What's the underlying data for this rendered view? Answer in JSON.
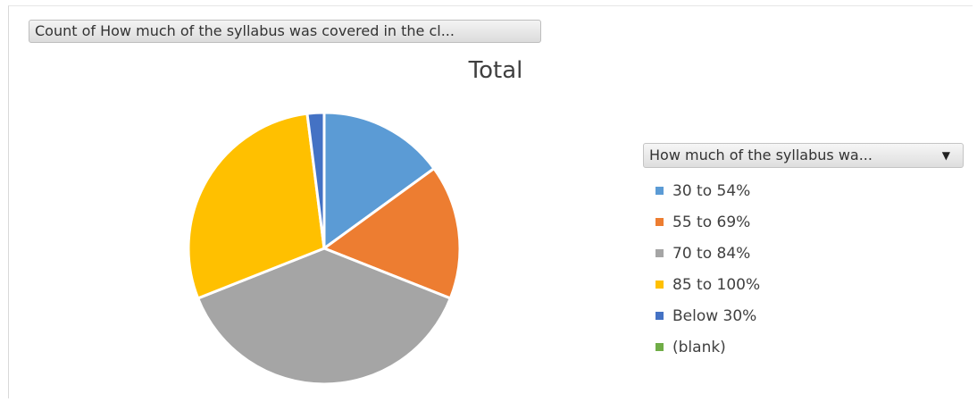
{
  "field_button_label": "Count of How much of the syllabus was covered in the cl...",
  "legend_field_label": "How much of the syllabus wa...",
  "chart_data": {
    "type": "pie",
    "title": "Total",
    "categories": [
      "30 to 54%",
      "55 to 69%",
      "70 to 84%",
      "85 to 100%",
      "Below 30%",
      "(blank)"
    ],
    "values": [
      15,
      16,
      38,
      29,
      2,
      0
    ],
    "colors": [
      "#5b9bd5",
      "#ed7d31",
      "#a5a5a5",
      "#ffc000",
      "#4472c4",
      "#70ad47"
    ],
    "legend_position": "right"
  }
}
